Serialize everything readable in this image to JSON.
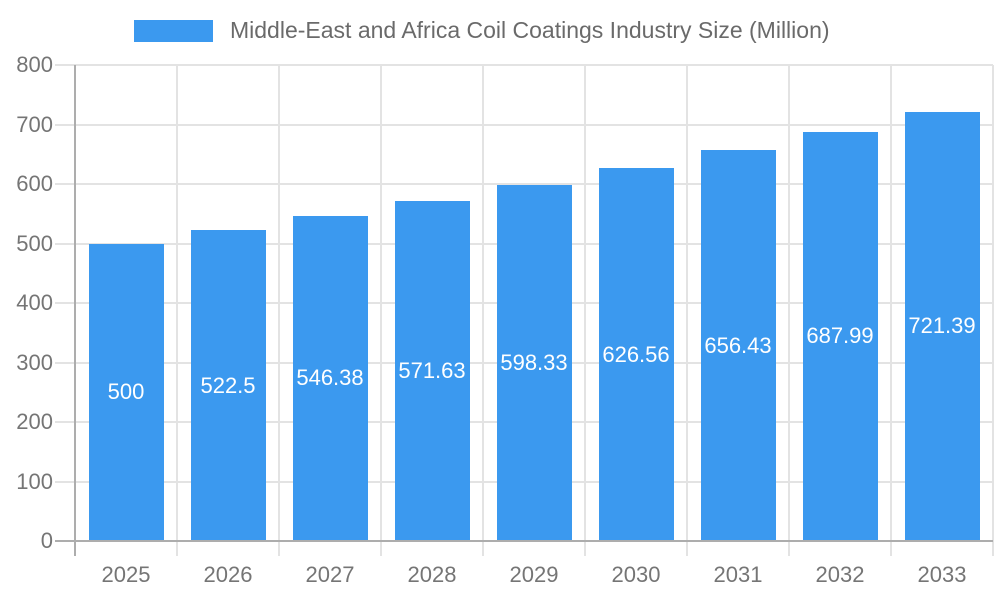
{
  "legend": {
    "label": "Middle-East and Africa Coil Coatings Industry Size (Million)"
  },
  "chart_data": {
    "type": "bar",
    "title": "Middle-East and Africa Coil Coatings Industry Size (Million)",
    "categories": [
      "2025",
      "2026",
      "2027",
      "2028",
      "2029",
      "2030",
      "2031",
      "2032",
      "2033"
    ],
    "values": [
      500,
      522.5,
      546.38,
      571.63,
      598.33,
      626.56,
      656.43,
      687.99,
      721.39
    ],
    "value_labels": [
      "500",
      "522.5",
      "546.38",
      "571.63",
      "598.33",
      "626.56",
      "656.43",
      "687.99",
      "721.39"
    ],
    "xlabel": "",
    "ylabel": "",
    "ylim": [
      0,
      800
    ],
    "ytick_step": 100,
    "grid": true,
    "legend_position": "top",
    "value_label_position": "center-inside"
  },
  "colors": {
    "bar": "#3b99ef",
    "grid": "#e3e3e3",
    "axis": "#adadad",
    "tick_text": "#757575",
    "title_text": "#6a6a6a",
    "value_text": "#ffffff",
    "background": "#ffffff"
  }
}
